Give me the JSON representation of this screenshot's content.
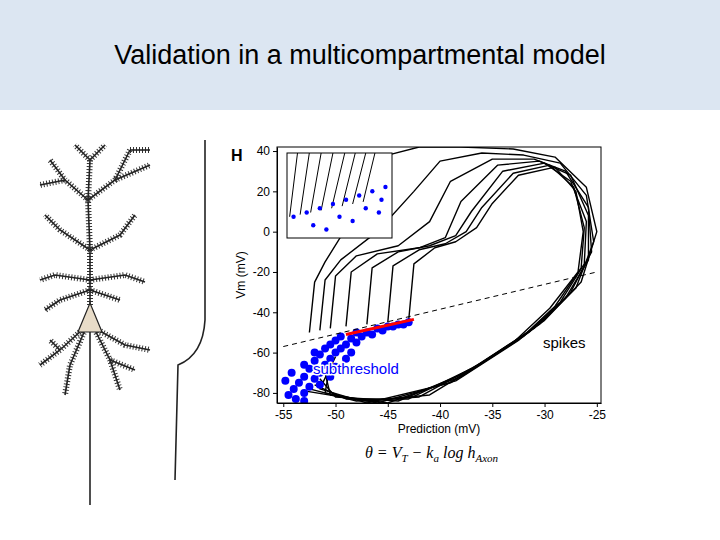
{
  "slide": {
    "title": "Validation in a multicompartmental model",
    "equation": [
      "θ = V",
      "T",
      " − k",
      "a",
      " log h",
      "Axon"
    ]
  },
  "chart_data": [
    {
      "type": "line",
      "panel_label": "H",
      "x_label": "Prediction (mV)",
      "y_label": "Vm (mV)",
      "xlim": [
        -55.6,
        -24.6
      ],
      "xticks": [
        -55,
        -50,
        -45,
        -40,
        -35,
        -30,
        -25
      ],
      "ylim": [
        -85,
        42
      ],
      "yticks": [
        -80,
        -60,
        -40,
        -20,
        0,
        20,
        40
      ],
      "series": [
        {
          "type": "line",
          "color": "#000000",
          "x": [
            -52.5,
            -52,
            -51,
            -48,
            -45,
            -42,
            -38,
            -33,
            -29,
            -26,
            -25,
            -26.5,
            -30,
            -35,
            -41,
            -47,
            -53
          ],
          "values": [
            -50,
            -25,
            -15,
            10,
            38,
            42,
            42,
            41,
            37,
            22,
            0,
            -25,
            -44,
            -62,
            -81,
            -84,
            -79
          ]
        },
        {
          "type": "line",
          "color": "#000000",
          "x": [
            -51.5,
            -51,
            -49.5,
            -46,
            -42.5,
            -40,
            -36,
            -32,
            -28.5,
            -26,
            -25.3,
            -27,
            -30.5,
            -36,
            -42,
            -48,
            -52.5
          ],
          "values": [
            -49,
            -24,
            -14,
            0,
            20,
            35,
            39,
            38,
            34,
            18,
            -5,
            -28,
            -46,
            -65,
            -82,
            -84,
            -78
          ]
        },
        {
          "type": "line",
          "color": "#000000",
          "x": [
            -50.5,
            -50,
            -48,
            -44,
            -41,
            -39,
            -35,
            -31,
            -28,
            -25.8,
            -25.5,
            -27.5,
            -31,
            -37,
            -43,
            -49,
            -52
          ],
          "values": [
            -48,
            -22,
            -12,
            -7,
            5,
            25,
            36,
            36,
            30,
            12,
            -10,
            -30,
            -48,
            -68,
            -83,
            -83,
            -76
          ]
        },
        {
          "type": "line",
          "color": "#000000",
          "x": [
            -49,
            -48.5,
            -46,
            -42,
            -39.5,
            -38,
            -34.5,
            -30.5,
            -27.5,
            -25.8,
            -25.8,
            -28,
            -31.5,
            -37.5,
            -44,
            -50,
            -51.5
          ],
          "values": [
            -47,
            -20,
            -11,
            -8,
            -3,
            15,
            33,
            35,
            28,
            8,
            -14,
            -33,
            -50,
            -70,
            -84,
            -82,
            -73
          ]
        },
        {
          "type": "line",
          "color": "#000000",
          "x": [
            -47,
            -46.5,
            -44,
            -41,
            -38.5,
            -37,
            -34,
            -30,
            -27.5,
            -26,
            -26.2,
            -28.5,
            -32,
            -38,
            -45,
            -50.5,
            -51
          ],
          "values": [
            -46,
            -18,
            -10,
            -7,
            -2,
            10,
            30,
            34,
            25,
            5,
            -16,
            -35,
            -52,
            -72,
            -85,
            -81,
            -70
          ]
        },
        {
          "type": "line",
          "color": "#000000",
          "x": [
            -45,
            -44.5,
            -42,
            -39.5,
            -37.5,
            -36,
            -33,
            -29.5,
            -27.2,
            -26.2,
            -26.5,
            -29,
            -32.5,
            -38.5,
            -46,
            -51,
            -50.5
          ],
          "values": [
            -45,
            -17,
            -9,
            -6,
            0,
            12,
            29,
            33,
            22,
            2,
            -18,
            -37,
            -54,
            -74,
            -85,
            -80,
            -66
          ]
        },
        {
          "type": "line",
          "color": "#000000",
          "x": [
            -43,
            -42.5,
            -40.5,
            -38.5,
            -36.5,
            -35,
            -32.5,
            -29,
            -27,
            -26.3,
            -26.8,
            -29.5,
            -33,
            -39,
            -47,
            -51.5,
            -50
          ],
          "values": [
            -44,
            -16,
            -8,
            -5,
            2,
            14,
            28,
            32,
            20,
            0,
            -20,
            -38,
            -55,
            -75,
            -85,
            -78,
            -62
          ]
        },
        {
          "type": "scatter",
          "color": "#0000ff",
          "marker": "circle",
          "x": [
            -54.5,
            -54,
            -53.8,
            -53.5,
            -53,
            -53,
            -52.5,
            -52.5,
            -52,
            -52,
            -51.5,
            -51.5,
            -51,
            -51,
            -50.5,
            -50.5,
            -50,
            -50,
            -49.5,
            -49.5,
            -49,
            -48.5,
            -48,
            -48,
            -47.5,
            -47,
            -46.5,
            -46,
            -45.5,
            -45,
            -44.5,
            -44,
            -43.5,
            -43,
            -54.8,
            -54.2,
            -53,
            -52,
            -49,
            -50,
            -51.5,
            -53,
            -50.5,
            -48.5
          ],
          "values": [
            -81,
            -78,
            -83,
            -75,
            -80,
            -72,
            -77,
            -68,
            -73,
            -64,
            -70,
            -61,
            -66,
            -58,
            -63,
            -56,
            -60,
            -54,
            -58,
            -52,
            -56,
            -53,
            -55,
            -50,
            -52,
            -50,
            -51,
            -48,
            -49,
            -47,
            -47,
            -46,
            -46,
            -45,
            -74,
            -70,
            -66,
            -60,
            -63,
            -67,
            -76,
            -84,
            -72,
            -60
          ]
        },
        {
          "type": "line",
          "color": "#ff0000",
          "x": [
            -49,
            -42.5
          ],
          "values": [
            -51,
            -43.5
          ]
        },
        {
          "type": "line",
          "color": "#000000",
          "line_style": "dashed",
          "x": [
            -55,
            -25
          ],
          "values": [
            -57,
            -20
          ]
        }
      ],
      "annotations": [
        {
          "text": "spikes",
          "color": "#000000"
        },
        {
          "text": "subthreshold",
          "color": "#0000ff"
        }
      ]
    },
    {
      "type": "line",
      "xlim": [
        -52,
        -44
      ],
      "ylim": [
        -55,
        -35
      ],
      "tick_labels": false,
      "series": [
        {
          "type": "line",
          "color": "#000000",
          "x": [
            -51.8,
            -51.2,
            null,
            -51,
            -50.3,
            null,
            -50.2,
            -49.4,
            null,
            -49.4,
            -48.5,
            null,
            -48.6,
            -47.6,
            null,
            -47.8,
            -46.8,
            null,
            -47,
            -46,
            null,
            -46.2,
            -45.3
          ],
          "values": [
            -50,
            -35,
            null,
            -49.5,
            -35,
            null,
            -49,
            -35,
            null,
            -48.5,
            -35,
            null,
            -48,
            -35,
            null,
            -47.5,
            -35,
            null,
            -47,
            -35,
            null,
            -46.5,
            -35
          ]
        },
        {
          "type": "scatter",
          "color": "#0000ff",
          "marker": "circle",
          "x": [
            -51.5,
            -50.5,
            -49.5,
            -48.5,
            -47.5,
            -46.5,
            -45.5,
            -44.5,
            -50,
            -48,
            -46,
            -44.8,
            -49,
            -47,
            -45
          ],
          "values": [
            -50,
            -49,
            -48,
            -47,
            -46,
            -45,
            -44,
            -43,
            -52,
            -50,
            -48,
            -46,
            -53,
            -51,
            -49
          ]
        }
      ]
    }
  ]
}
